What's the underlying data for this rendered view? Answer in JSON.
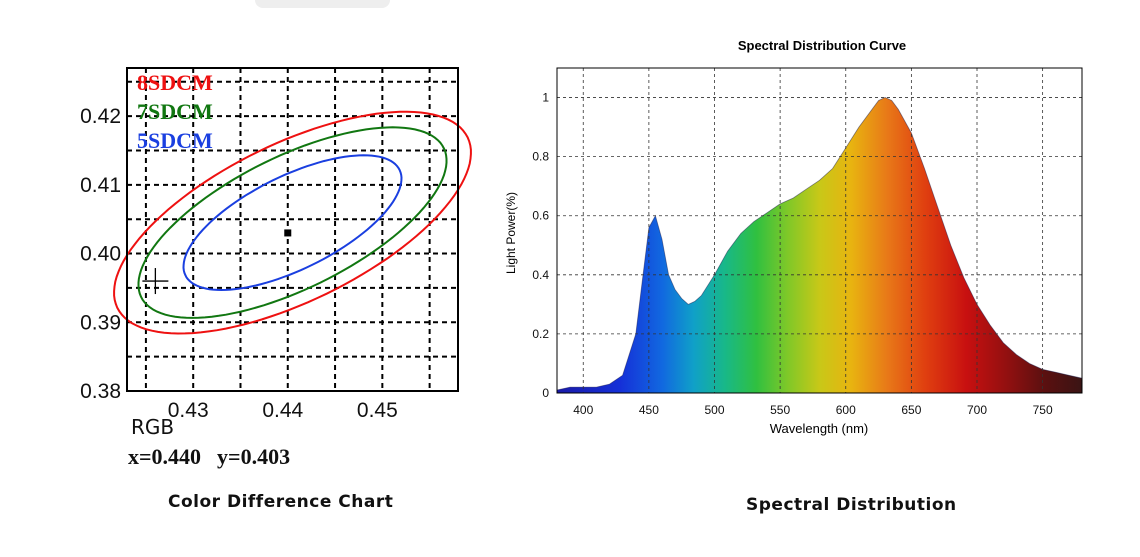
{
  "chart_data": [
    {
      "type": "scatter",
      "title": "",
      "xlabel": "",
      "ylabel": "",
      "xlim": [
        0.423,
        0.458
      ],
      "ylim": [
        0.38,
        0.427
      ],
      "x_ticks": [
        "0.43",
        "0.44",
        "0.45"
      ],
      "y_ticks": [
        "0.38",
        "0.39",
        "0.40",
        "0.41",
        "0.42"
      ],
      "grid": true,
      "legend": [
        {
          "label": "8SDCM",
          "color": "#ee1111"
        },
        {
          "label": "7SDCM",
          "color": "#117711"
        },
        {
          "label": "5SDCM",
          "color": "#1a3fe0"
        }
      ],
      "ellipses": [
        {
          "name": "8SDCM",
          "center": [
            0.4405,
            0.4045
          ],
          "semi_major": 0.0225,
          "semi_minor": 0.0105,
          "angle_deg": 38
        },
        {
          "name": "7SDCM",
          "center": [
            0.4405,
            0.4045
          ],
          "semi_major": 0.0195,
          "semi_minor": 0.0088,
          "angle_deg": 38
        },
        {
          "name": "5SDCM",
          "center": [
            0.4405,
            0.4045
          ],
          "semi_major": 0.0138,
          "semi_minor": 0.0062,
          "angle_deg": 38
        }
      ],
      "points": [
        {
          "x": 0.44,
          "y": 0.403,
          "marker": "square"
        },
        {
          "x": 0.426,
          "y": 0.396,
          "marker": "cross"
        }
      ],
      "readout": {
        "label": "RGB",
        "x_text": "x=0.440",
        "y_text": "y=0.403"
      },
      "caption": "Color Difference Chart"
    },
    {
      "type": "area",
      "title": "Spectral Distribution Curve",
      "xlabel": "Wavelength  (nm)",
      "ylabel": "Light Power(%)",
      "xlim": [
        380,
        780
      ],
      "ylim": [
        0,
        1.1
      ],
      "x_ticks": [
        "400",
        "450",
        "500",
        "550",
        "600",
        "650",
        "700",
        "750"
      ],
      "y_ticks": [
        "0",
        "0.2",
        "0.4",
        "0.6",
        "0.8",
        "1"
      ],
      "grid": true,
      "x": [
        380,
        390,
        400,
        410,
        420,
        430,
        440,
        445,
        450,
        455,
        460,
        465,
        470,
        475,
        480,
        485,
        490,
        500,
        510,
        520,
        530,
        540,
        550,
        560,
        570,
        580,
        590,
        600,
        610,
        620,
        625,
        630,
        635,
        640,
        650,
        660,
        670,
        680,
        690,
        700,
        710,
        720,
        730,
        740,
        750,
        760,
        770,
        780
      ],
      "values": [
        0.01,
        0.02,
        0.02,
        0.02,
        0.03,
        0.06,
        0.2,
        0.38,
        0.56,
        0.6,
        0.52,
        0.4,
        0.35,
        0.32,
        0.3,
        0.31,
        0.33,
        0.4,
        0.48,
        0.54,
        0.58,
        0.61,
        0.64,
        0.66,
        0.69,
        0.72,
        0.76,
        0.83,
        0.9,
        0.96,
        0.99,
        1.0,
        0.99,
        0.96,
        0.88,
        0.76,
        0.63,
        0.5,
        0.39,
        0.3,
        0.23,
        0.17,
        0.13,
        0.1,
        0.08,
        0.07,
        0.06,
        0.05
      ],
      "caption": "Spectral Distribution"
    }
  ]
}
